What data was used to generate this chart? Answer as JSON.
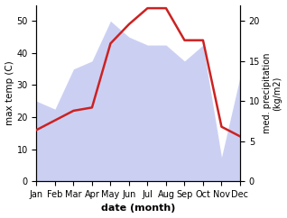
{
  "months": [
    "Jan",
    "Feb",
    "Mar",
    "Apr",
    "May",
    "Jun",
    "Jul",
    "Aug",
    "Sep",
    "Oct",
    "Nov",
    "Dec"
  ],
  "temp_line": [
    16,
    19,
    22,
    23,
    43,
    49,
    54,
    54,
    44,
    44,
    17,
    14
  ],
  "precip_area": [
    10,
    9,
    14,
    15,
    20,
    18,
    17,
    17,
    15,
    17,
    3,
    13
  ],
  "temp_ylim": [
    0,
    55
  ],
  "precip_ylim": [
    0,
    22
  ],
  "temp_yticks": [
    0,
    10,
    20,
    30,
    40,
    50
  ],
  "precip_yticks": [
    0,
    5,
    10,
    15,
    20
  ],
  "ylabel_left": "max temp (C)",
  "ylabel_right": "med. precipitation\n(kg/m2)",
  "xlabel": "date (month)",
  "area_color": "#b0b8ee",
  "area_alpha": 0.65,
  "line_color": "#cc2222",
  "line_width": 1.8,
  "bg_color": "#ffffff"
}
